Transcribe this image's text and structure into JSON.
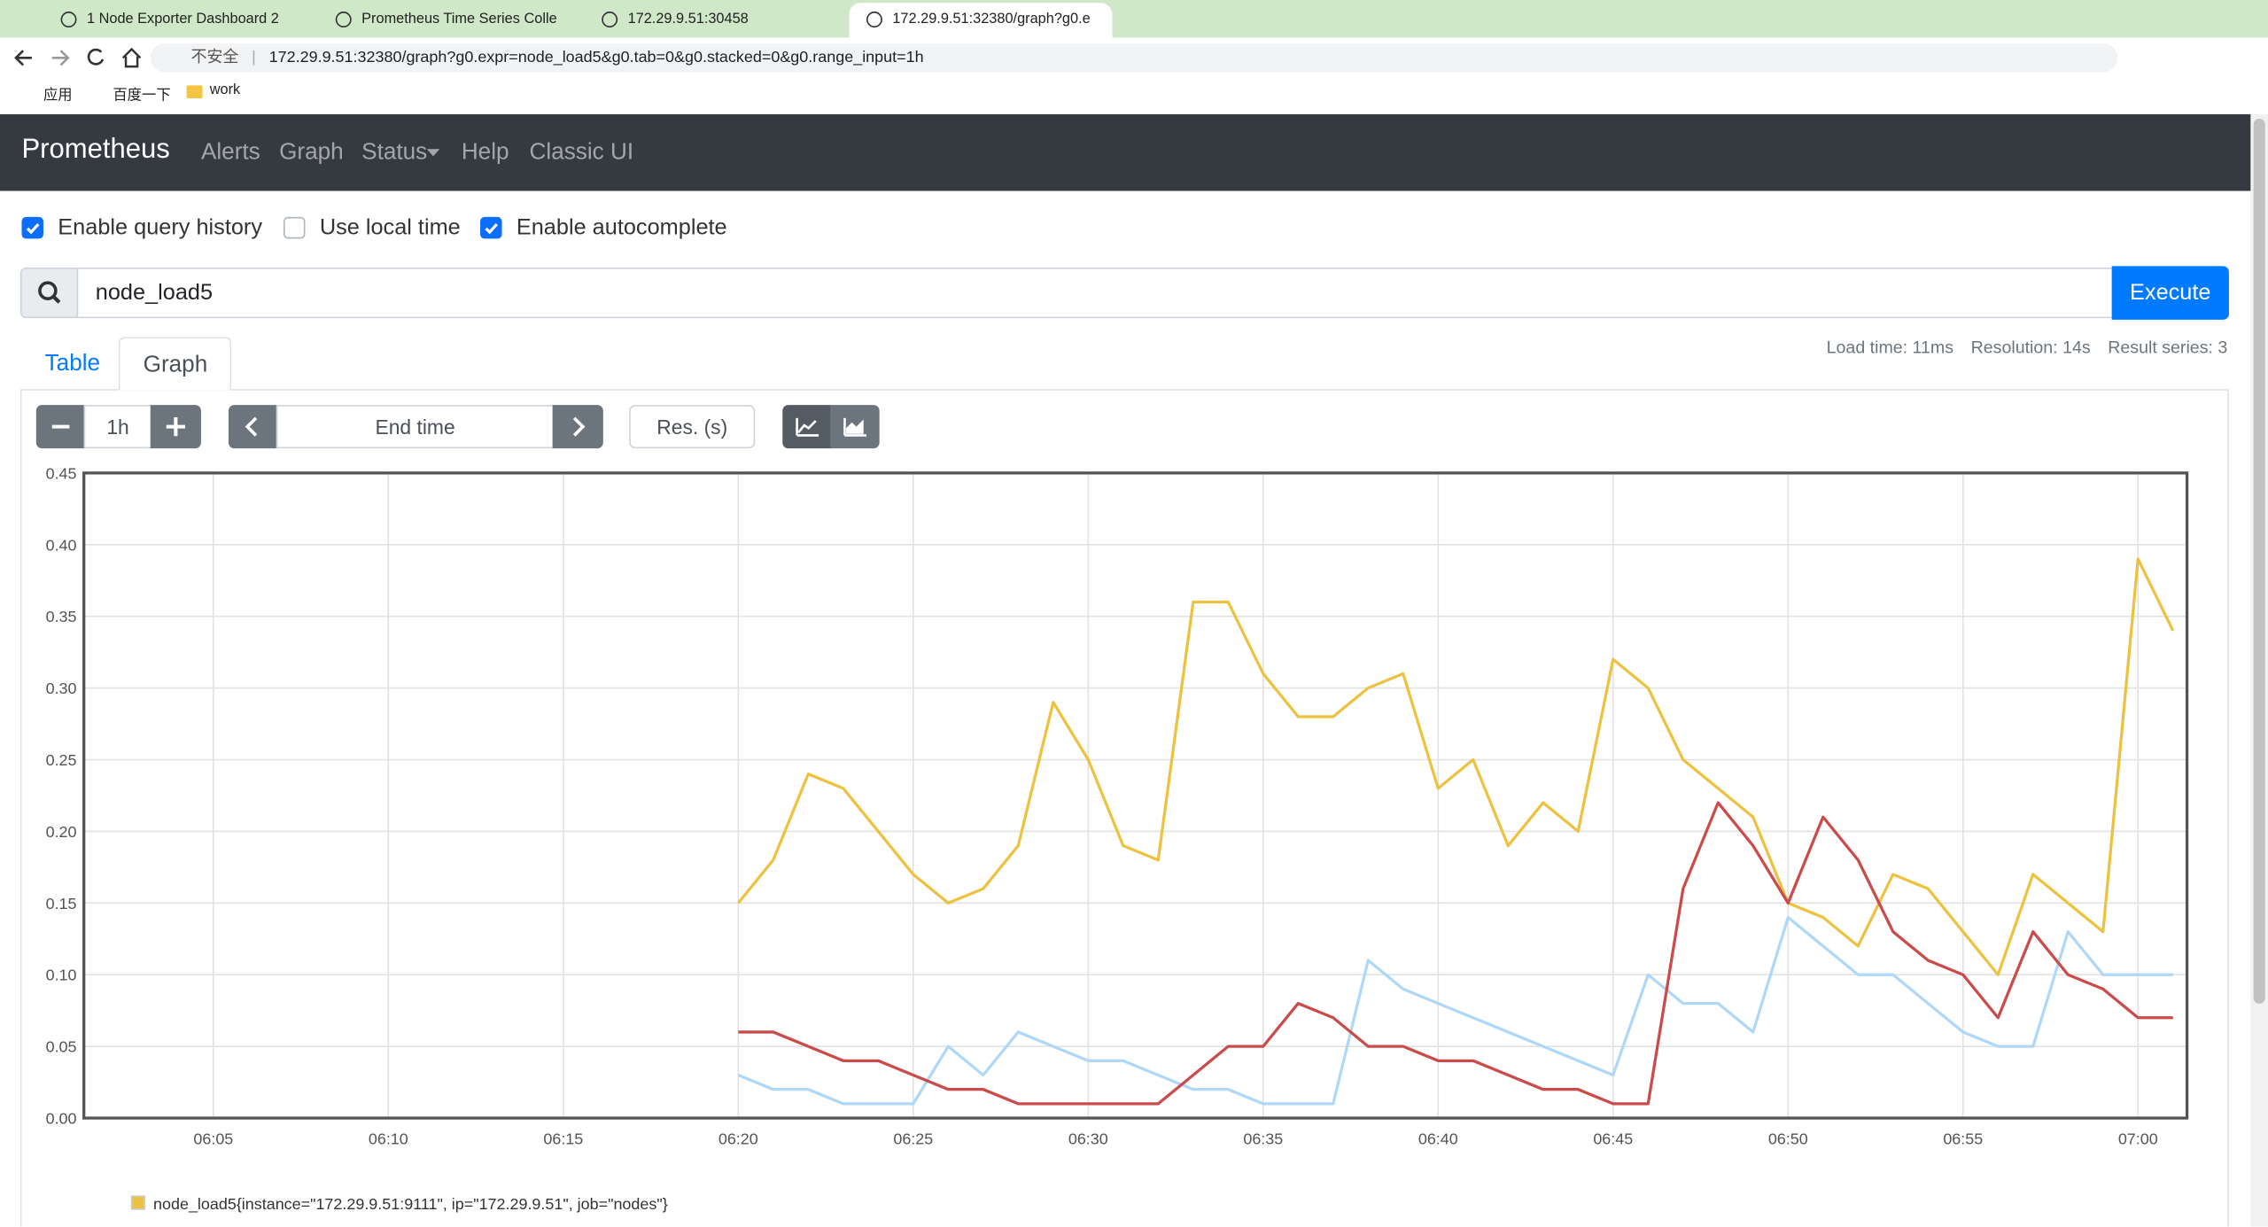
{
  "browser": {
    "tabs": [
      "1 Node Exporter Dashboard 2",
      "Prometheus Time Series Colle",
      "172.29.9.51:30458",
      "172.29.9.51:32380/graph?g0.e"
    ],
    "url_warning": "不安全",
    "url": "172.29.9.51:32380/graph?g0.expr=node_load5&g0.tab=0&g0.stacked=0&g0.range_input=1h",
    "bookmarks": [
      "应用",
      "百度一下",
      "work"
    ]
  },
  "navbar": {
    "brand": "Prometheus",
    "links": [
      "Alerts",
      "Graph",
      "Status",
      "Help",
      "Classic UI"
    ]
  },
  "options": [
    {
      "label": "Enable query history",
      "checked": true
    },
    {
      "label": "Use local time",
      "checked": false
    },
    {
      "label": "Enable autocomplete",
      "checked": true
    }
  ],
  "query": {
    "expr": "node_load5",
    "button": "Execute"
  },
  "panel_tabs": {
    "items": [
      "Table",
      "Graph"
    ],
    "active": 1
  },
  "stats": [
    "Load time: 11ms",
    "Resolution: 14s",
    "Result series: 3"
  ],
  "controls": {
    "range": "1h",
    "end_time": "End time",
    "resolution": "Res. (s)"
  },
  "chart_data": {
    "type": "line",
    "x": [
      380,
      381,
      382,
      383,
      384,
      385,
      386,
      387,
      388,
      389,
      390,
      391,
      392,
      393,
      394,
      395,
      396,
      397,
      398,
      399,
      400,
      401,
      402,
      403,
      404,
      405,
      406,
      407,
      408,
      409,
      410,
      411,
      412,
      413,
      414,
      415,
      416,
      417,
      418,
      419,
      420,
      421
    ],
    "series": [
      {
        "name": "node_load5{instance=\"172.29.9.51:9111\", ip=\"172.29.9.51\", job=\"nodes\"}",
        "color": "#edc240",
        "values": [
          0.15,
          0.18,
          0.24,
          0.23,
          0.2,
          0.17,
          0.15,
          0.16,
          0.19,
          0.29,
          0.25,
          0.19,
          0.18,
          0.36,
          0.36,
          0.31,
          0.28,
          0.28,
          0.3,
          0.31,
          0.23,
          0.25,
          0.19,
          0.22,
          0.2,
          0.32,
          0.3,
          0.25,
          0.23,
          0.21,
          0.15,
          0.14,
          0.12,
          0.17,
          0.16,
          0.13,
          0.1,
          0.17,
          0.15,
          0.13,
          0.39,
          0.34
        ]
      },
      {
        "color": "#afd8f8",
        "values": [
          0.03,
          0.02,
          0.02,
          0.01,
          0.01,
          0.01,
          0.05,
          0.03,
          0.06,
          0.05,
          0.04,
          0.04,
          0.03,
          0.02,
          0.02,
          0.01,
          0.01,
          0.01,
          0.11,
          0.09,
          0.08,
          0.07,
          0.06,
          0.05,
          0.04,
          0.03,
          0.1,
          0.08,
          0.08,
          0.06,
          0.14,
          0.12,
          0.1,
          0.1,
          0.08,
          0.06,
          0.05,
          0.05,
          0.13,
          0.1,
          0.1,
          0.1
        ]
      },
      {
        "color": "#cb4b4b",
        "values": [
          0.06,
          0.06,
          0.05,
          0.04,
          0.04,
          0.03,
          0.02,
          0.02,
          0.01,
          0.01,
          0.01,
          0.01,
          0.01,
          0.03,
          0.05,
          0.05,
          0.08,
          0.07,
          0.05,
          0.05,
          0.04,
          0.04,
          0.03,
          0.02,
          0.02,
          0.01,
          0.01,
          0.16,
          0.22,
          0.19,
          0.15,
          0.21,
          0.18,
          0.13,
          0.11,
          0.1,
          0.07,
          0.13,
          0.1,
          0.09,
          0.07,
          0.07
        ]
      }
    ],
    "xlim": [
      361.3,
      421.4
    ],
    "xticks": [
      {
        "value": 365,
        "label": "06:05"
      },
      {
        "value": 370,
        "label": "06:10"
      },
      {
        "value": 375,
        "label": "06:15"
      },
      {
        "value": 380,
        "label": "06:20"
      },
      {
        "value": 385,
        "label": "06:25"
      },
      {
        "value": 390,
        "label": "06:30"
      },
      {
        "value": 395,
        "label": "06:35"
      },
      {
        "value": 400,
        "label": "06:40"
      },
      {
        "value": 405,
        "label": "06:45"
      },
      {
        "value": 410,
        "label": "06:50"
      },
      {
        "value": 415,
        "label": "06:55"
      },
      {
        "value": 420,
        "label": "07:00"
      }
    ],
    "ylim": [
      0,
      0.45
    ],
    "yticks": [
      {
        "value": 0,
        "label": "0.00"
      },
      {
        "value": 0.05,
        "label": "0.05"
      },
      {
        "value": 0.1,
        "label": "0.10"
      },
      {
        "value": 0.15,
        "label": "0.15"
      },
      {
        "value": 0.2,
        "label": "0.20"
      },
      {
        "value": 0.25,
        "label": "0.25"
      },
      {
        "value": 0.3,
        "label": "0.30"
      },
      {
        "value": 0.35,
        "label": "0.35"
      },
      {
        "value": 0.4,
        "label": "0.40"
      },
      {
        "value": 0.45,
        "label": "0.45"
      }
    ],
    "grid": true
  }
}
